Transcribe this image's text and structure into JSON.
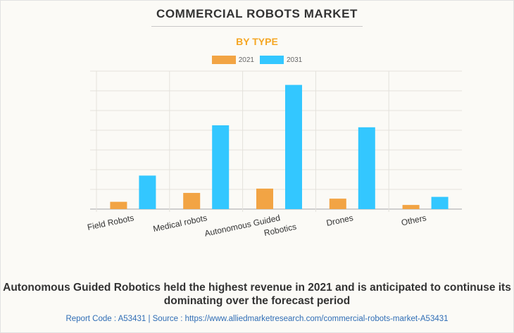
{
  "header": {
    "title": "COMMERCIAL ROBOTS MARKET",
    "subtitle": "BY TYPE"
  },
  "chart_data": {
    "type": "bar",
    "title": "COMMERCIAL ROBOTS MARKET",
    "subtitle": "BY TYPE",
    "xlabel": "",
    "ylabel": "",
    "categories": [
      "Field Robots",
      "Medical robots",
      "Autonomous Guided Robotics",
      "Drones",
      "Others"
    ],
    "category_label_lines": [
      [
        "Field Robots"
      ],
      [
        "Medical robots"
      ],
      [
        "Autonomous Guided",
        "Robotics"
      ],
      [
        "Drones"
      ],
      [
        "Others"
      ]
    ],
    "series": [
      {
        "name": "2021",
        "color": "#f2a444",
        "values": [
          0.37,
          0.82,
          1.04,
          0.53,
          0.21
        ]
      },
      {
        "name": "2031",
        "color": "#33c7ff",
        "values": [
          1.7,
          4.25,
          6.3,
          4.15,
          0.62
        ]
      }
    ],
    "ylim": [
      0,
      7
    ],
    "y_gridline_count": 7,
    "y_tick_labels_shown": false,
    "grid": true,
    "legend": "top-center",
    "note": "Values in relative gridline units; no y-axis tick labels are printed."
  },
  "footer": {
    "summary": "Autonomous Guided Robotics held the highest revenue in 2021 and is anticipated to continuse its dominating over the forecast period",
    "source": "Report Code : A53431  |  Source : https://www.alliedmarketresearch.com/commercial-robots-market-A53431"
  }
}
